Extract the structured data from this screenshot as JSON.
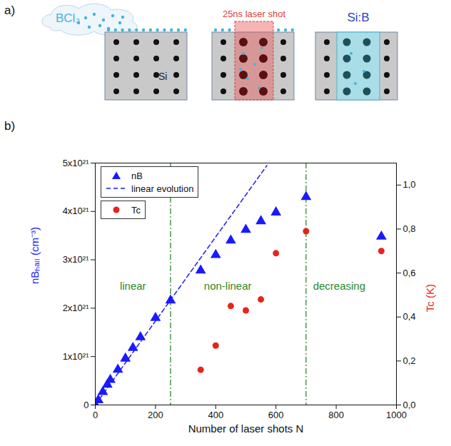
{
  "panel_a": {
    "letter": "a)",
    "gas": "BCl₃",
    "laser": "25ns laser shot",
    "substrate": "Si",
    "doped": "Si:B"
  },
  "panel_b_letter": "b)",
  "chart_data": {
    "type": "scatter",
    "xlabel": "Number of laser shots N",
    "ylabel": "nBₕₐₗₗ (cm⁻³)",
    "y2label": "Tc (K)",
    "xlim": [
      0,
      1000
    ],
    "xticks": [
      0,
      200,
      400,
      600,
      800,
      1000
    ],
    "ylim": [
      0,
      5e+21
    ],
    "yticks": [
      0,
      {
        "value": 1e+21,
        "label": "1x10²¹"
      },
      {
        "value": 2e+21,
        "label": "2x10²¹"
      },
      {
        "value": 3e+21,
        "label": "3x10²¹"
      },
      {
        "value": 4e+21,
        "label": "4x10²¹"
      },
      {
        "value": 5e+21,
        "label": "5x10²¹"
      }
    ],
    "y2lim": [
      0,
      1.1
    ],
    "y2ticks": [
      {
        "value": 0,
        "label": "0,0"
      },
      {
        "value": 0.2,
        "label": "0,2"
      },
      {
        "value": 0.4,
        "label": "0,4"
      },
      {
        "value": 0.6,
        "label": "0,6"
      },
      {
        "value": 0.8,
        "label": "0,8"
      },
      {
        "value": 1.0,
        "label": "1,0"
      }
    ],
    "grid": false,
    "legend": "top-left",
    "series": [
      {
        "name": "nB",
        "type": "scatter",
        "marker": "triangle",
        "color": "#1a1aff",
        "x": [
          0,
          10,
          25,
          40,
          50,
          75,
          100,
          125,
          150,
          200,
          250,
          350,
          400,
          450,
          500,
          550,
          600,
          700,
          950
        ],
        "values": [
          0,
          1e+20,
          2.7e+20,
          4.2e+20,
          5.2e+20,
          7.3e+20,
          9.6e+20,
          1.18e+21,
          1.4e+21,
          1.8e+21,
          2.16e+21,
          2.78e+21,
          3.1e+21,
          3.4e+21,
          3.62e+21,
          3.8e+21,
          3.98e+21,
          4.3e+21,
          3.48e+21
        ]
      },
      {
        "name": "linear evolution",
        "type": "line",
        "line_style": "dashed",
        "color": "#1a1aff",
        "x": [
          0,
          570
        ],
        "values": [
          0,
          4.95e+21
        ]
      },
      {
        "name": "Tc",
        "type": "scatter",
        "marker": "circle",
        "color": "#e8231b",
        "axis": "y2",
        "x": [
          350,
          400,
          450,
          500,
          550,
          600,
          700,
          950
        ],
        "values": [
          0.16,
          0.27,
          0.45,
          0.43,
          0.48,
          0.69,
          0.79,
          0.7
        ]
      }
    ],
    "boundaries": [
      250,
      700
    ],
    "annotations": [
      {
        "text": "linear",
        "x": 125,
        "y": 2.45e+21
      },
      {
        "text": "non-linear",
        "x": 440,
        "y": 2.45e+21
      },
      {
        "text": "decreasing",
        "x": 810,
        "y": 2.45e+21
      }
    ]
  }
}
